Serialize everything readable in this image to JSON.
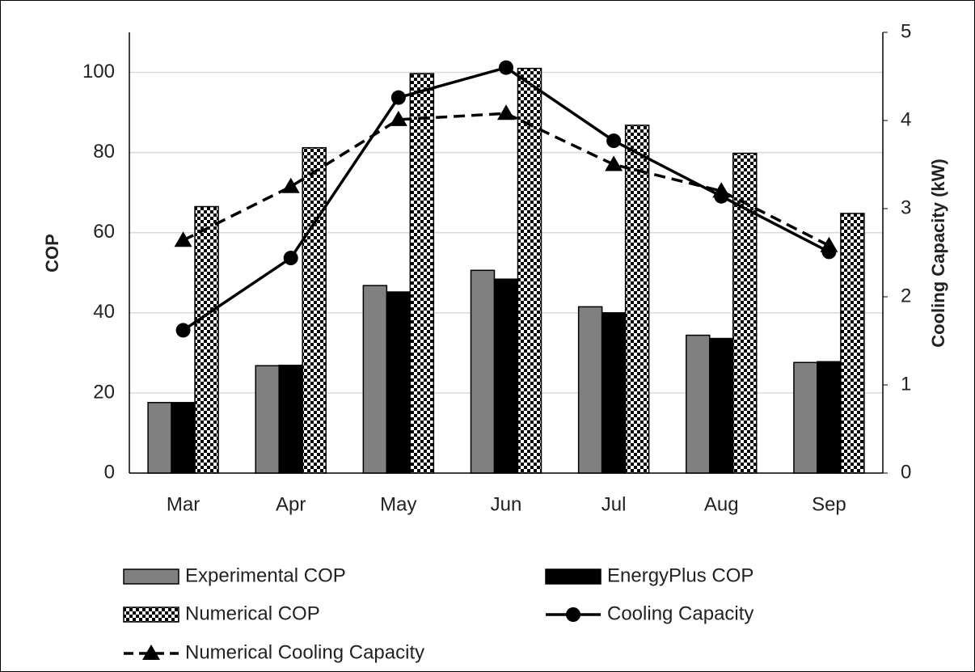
{
  "chart_data": {
    "type": "bar",
    "categories": [
      "Mar",
      "Apr",
      "May",
      "Jun",
      "Jul",
      "Aug",
      "Sep"
    ],
    "ylabel": "COP",
    "y2label": "Cooling Capacity (kW)",
    "ylim": [
      0,
      110
    ],
    "yticks": [
      0,
      20,
      40,
      60,
      80,
      100
    ],
    "y2lim": [
      0,
      5
    ],
    "y2ticks": [
      0,
      1,
      2,
      3,
      4,
      5
    ],
    "grid": true,
    "legend": "bottom",
    "series": [
      {
        "name": "Experimental COP",
        "type": "bar",
        "color": "#808080",
        "values": [
          17.6,
          26.8,
          46.8,
          50.6,
          41.5,
          34.4,
          27.6
        ]
      },
      {
        "name": "EnergyPlus COP",
        "type": "bar",
        "color": "#000000",
        "values": [
          17.6,
          26.9,
          45.2,
          48.4,
          40.0,
          33.6,
          27.8
        ]
      },
      {
        "name": "Numerical COP",
        "type": "bar",
        "color": "checker",
        "values": [
          66.5,
          81.2,
          99.7,
          101.0,
          86.8,
          79.8,
          64.8
        ]
      },
      {
        "name": "Cooling Capacity",
        "type": "line",
        "axis": "y2",
        "color": "#000000",
        "marker": "circle",
        "dash": false,
        "values": [
          1.62,
          2.44,
          4.26,
          4.6,
          3.77,
          3.14,
          2.51
        ]
      },
      {
        "name": "Numerical Cooling Capacity",
        "type": "line",
        "axis": "y2",
        "color": "#000000",
        "marker": "triangle",
        "dash": true,
        "values": [
          2.64,
          3.25,
          4.01,
          4.08,
          3.5,
          3.2,
          2.58
        ]
      }
    ]
  }
}
